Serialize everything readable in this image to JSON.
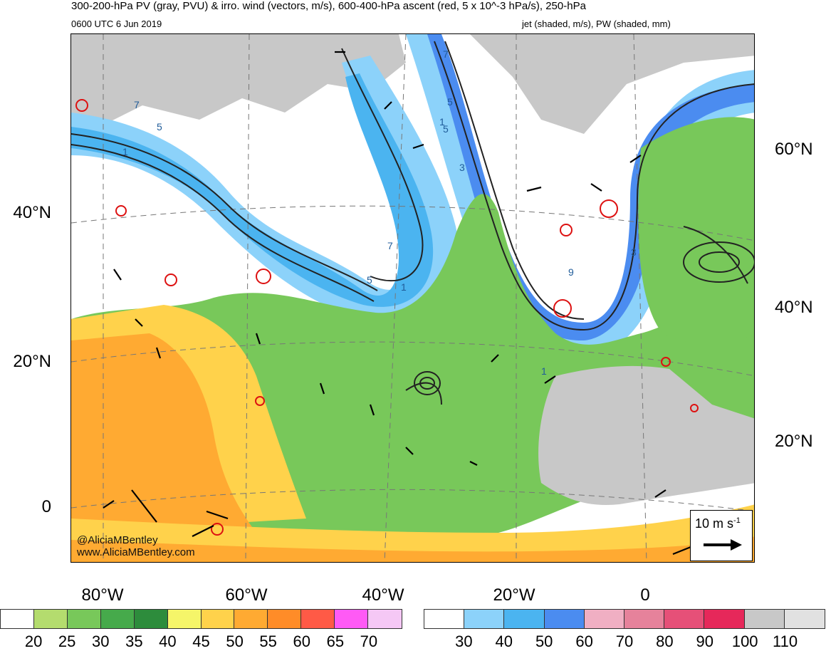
{
  "title": {
    "line1": "300-200-hPa PV (gray, PVU) & irro. wind (vectors, m/s), 600-400-hPa ascent (red, 5 x 10^-3 hPa/s), 250-hPa",
    "line2_left": "0600 UTC 6 Jun 2019",
    "line2_right": "jet (shaded, m/s), PW (shaded, mm)"
  },
  "lat_labels_left": [
    "40°N",
    "20°N",
    "0"
  ],
  "lat_labels_right": [
    "60°N",
    "40°N",
    "20°N"
  ],
  "lon_labels": [
    "80°W",
    "60°W",
    "40°W",
    "20°W",
    "0"
  ],
  "credit": {
    "handle": "@AliciaMBentley",
    "site": "www.AliciaMBentley.com"
  },
  "vector_legend": {
    "label": "10 m s",
    "exponent": "-1"
  },
  "pw_colorbar": {
    "colors": [
      "#ffffff",
      "#b4dc6e",
      "#78c85a",
      "#46aa4b",
      "#2d8c3c",
      "#f5f569",
      "#ffd24b",
      "#ffaa32",
      "#ff8c28",
      "#ff5a46",
      "#ff5af5",
      "#f5c8f5"
    ],
    "ticks": [
      "20",
      "25",
      "30",
      "35",
      "40",
      "45",
      "50",
      "55",
      "60",
      "65",
      "70"
    ]
  },
  "jet_colorbar": {
    "colors": [
      "#ffffff",
      "#8cd2fa",
      "#4bb4f0",
      "#4b8cf0",
      "#f0afc3",
      "#e6829b",
      "#e65078",
      "#e6285a",
      "#c8c8c8",
      "#e1e1e1"
    ],
    "ticks": [
      "30",
      "40",
      "50",
      "60",
      "70",
      "80",
      "90",
      "100",
      "110"
    ]
  },
  "contour_labels": [
    "7",
    "5",
    "1",
    "5",
    "7",
    "1",
    "3",
    "5",
    "7",
    "5",
    "1",
    "9",
    "3",
    "1"
  ]
}
